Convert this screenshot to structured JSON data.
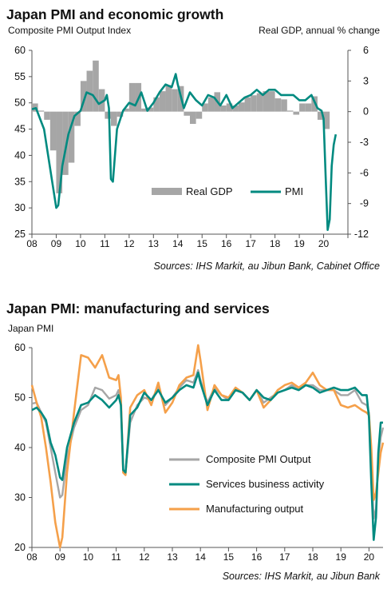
{
  "chart_data": [
    {
      "type": "bar+line",
      "title": "Japan PMI and economic growth",
      "ylabel_left": "Composite PMI Output Index",
      "ylabel_right": "Real GDP, annual % change",
      "ylim_left": [
        25,
        60
      ],
      "ylim_right": [
        -12,
        6
      ],
      "yticks_left": [
        25,
        30,
        35,
        40,
        45,
        50,
        55,
        60
      ],
      "yticks_right": [
        -12,
        -9,
        -6,
        -3,
        0,
        3,
        6
      ],
      "x_ticklabels": [
        "08",
        "09",
        "10",
        "11",
        "12",
        "13",
        "14",
        "15",
        "16",
        "17",
        "18",
        "19",
        "20"
      ],
      "legend_position": "bottom-center",
      "grid": false,
      "source": "Sources: IHS Markit, au Jibun Bank, Cabinet Office",
      "series": [
        {
          "name": "Real GDP",
          "kind": "bar",
          "color": "#a6a6a6",
          "x": [
            2008.0,
            2008.25,
            2008.5,
            2008.75,
            2009.0,
            2009.25,
            2009.5,
            2009.75,
            2010.0,
            2010.25,
            2010.5,
            2010.75,
            2011.0,
            2011.25,
            2011.5,
            2011.75,
            2012.0,
            2012.25,
            2012.5,
            2012.75,
            2013.0,
            2013.25,
            2013.5,
            2013.75,
            2014.0,
            2014.25,
            2014.5,
            2014.75,
            2015.0,
            2015.25,
            2015.5,
            2015.75,
            2016.0,
            2016.25,
            2016.5,
            2016.75,
            2017.0,
            2017.25,
            2017.5,
            2017.75,
            2018.0,
            2018.25,
            2018.5,
            2018.75,
            2019.0,
            2019.25,
            2019.5,
            2019.75,
            2020.0
          ],
          "values": [
            0.8,
            0.1,
            -0.8,
            -3.8,
            -8.0,
            -6.2,
            -5.0,
            -1.4,
            3.0,
            4.0,
            5.0,
            2.2,
            -0.7,
            -1.4,
            -0.5,
            0.3,
            2.8,
            2.8,
            0.3,
            0.4,
            1.4,
            2.0,
            2.6,
            2.2,
            2.5,
            -0.4,
            -1.2,
            -0.7,
            0.8,
            1.4,
            1.9,
            0.6,
            0.8,
            0.6,
            0.9,
            1.4,
            1.6,
            1.8,
            2.0,
            2.0,
            1.3,
            1.2,
            0.1,
            -0.3,
            0.8,
            0.8,
            1.5,
            -0.8,
            -1.7
          ]
        },
        {
          "name": "PMI",
          "kind": "line",
          "color": "#008a80",
          "x": [
            2008.0,
            2008.167,
            2008.333,
            2008.5,
            2008.667,
            2008.833,
            2009.0,
            2009.083,
            2009.25,
            2009.5,
            2009.75,
            2010.0,
            2010.25,
            2010.5,
            2010.75,
            2011.0,
            2011.083,
            2011.167,
            2011.25,
            2011.333,
            2011.5,
            2011.75,
            2012.0,
            2012.25,
            2012.5,
            2012.75,
            2013.0,
            2013.25,
            2013.5,
            2013.75,
            2013.917,
            2014.0,
            2014.25,
            2014.5,
            2014.75,
            2015.0,
            2015.25,
            2015.5,
            2015.75,
            2016.0,
            2016.25,
            2016.5,
            2016.75,
            2017.0,
            2017.25,
            2017.5,
            2017.75,
            2018.0,
            2018.25,
            2018.5,
            2018.75,
            2019.0,
            2019.25,
            2019.5,
            2019.75,
            2019.917,
            2020.0,
            2020.083,
            2020.167,
            2020.25,
            2020.333,
            2020.417,
            2020.5
          ],
          "values": [
            48.8,
            49.0,
            47.0,
            45.0,
            40.0,
            35.0,
            30.0,
            30.5,
            38.0,
            44.0,
            47.5,
            48.5,
            52.0,
            51.5,
            49.8,
            50.5,
            51.5,
            49.0,
            35.5,
            35.0,
            45.0,
            48.5,
            50.0,
            49.5,
            52.0,
            48.5,
            50.0,
            52.0,
            53.5,
            53.0,
            55.5,
            53.5,
            49.0,
            52.0,
            50.5,
            49.5,
            51.5,
            51.0,
            49.5,
            51.5,
            49.0,
            50.0,
            51.0,
            51.5,
            52.5,
            51.5,
            52.5,
            52.5,
            51.5,
            51.5,
            51.5,
            50.5,
            50.5,
            51.5,
            49.0,
            48.5,
            47.0,
            36.0,
            25.8,
            27.8,
            38.0,
            42.0,
            44.0
          ]
        }
      ]
    },
    {
      "type": "line",
      "title": "Japan PMI: manufacturing and services",
      "ylabel": "Japan PMI",
      "ylim": [
        20,
        60
      ],
      "yticks": [
        20,
        30,
        40,
        50,
        60
      ],
      "x_ticklabels": [
        "08",
        "09",
        "10",
        "11",
        "12",
        "13",
        "14",
        "15",
        "16",
        "17",
        "18",
        "19",
        "20"
      ],
      "legend_position": "bottom-center",
      "grid": false,
      "source": "Sources: IHS Markit, au Jibun Bank",
      "series": [
        {
          "name": "Composite PMI Output",
          "color": "#a6a6a6",
          "x": [
            2008.0,
            2008.167,
            2008.333,
            2008.5,
            2008.667,
            2008.833,
            2009.0,
            2009.083,
            2009.25,
            2009.5,
            2009.75,
            2010.0,
            2010.25,
            2010.5,
            2010.75,
            2011.0,
            2011.083,
            2011.167,
            2011.25,
            2011.333,
            2011.5,
            2011.75,
            2012.0,
            2012.25,
            2012.5,
            2012.75,
            2013.0,
            2013.25,
            2013.5,
            2013.75,
            2013.917,
            2014.0,
            2014.25,
            2014.5,
            2014.75,
            2015.0,
            2015.25,
            2015.5,
            2015.75,
            2016.0,
            2016.25,
            2016.5,
            2016.75,
            2017.0,
            2017.25,
            2017.5,
            2017.75,
            2018.0,
            2018.25,
            2018.5,
            2018.75,
            2019.0,
            2019.25,
            2019.5,
            2019.75,
            2019.917,
            2020.0,
            2020.083,
            2020.167,
            2020.25,
            2020.333,
            2020.417,
            2020.5
          ],
          "values": [
            48.8,
            49.0,
            47.0,
            45.0,
            40.0,
            35.0,
            30.0,
            30.5,
            38.0,
            44.0,
            47.5,
            48.5,
            52.0,
            51.5,
            49.8,
            50.5,
            51.5,
            49.0,
            35.5,
            35.0,
            45.0,
            48.5,
            50.0,
            49.5,
            52.0,
            48.5,
            50.0,
            52.0,
            53.5,
            53.0,
            55.5,
            53.5,
            49.0,
            52.0,
            50.5,
            49.5,
            51.5,
            51.0,
            49.5,
            51.5,
            49.0,
            50.0,
            51.0,
            51.5,
            52.5,
            51.5,
            52.5,
            52.5,
            51.5,
            51.5,
            51.5,
            50.5,
            50.5,
            51.5,
            49.0,
            48.5,
            47.0,
            36.0,
            25.8,
            27.8,
            38.0,
            42.0,
            44.0
          ]
        },
        {
          "name": "Services business activity",
          "color": "#008a80",
          "x": [
            2008.0,
            2008.167,
            2008.333,
            2008.5,
            2008.667,
            2008.833,
            2009.0,
            2009.083,
            2009.25,
            2009.5,
            2009.75,
            2010.0,
            2010.25,
            2010.5,
            2010.75,
            2011.0,
            2011.083,
            2011.167,
            2011.25,
            2011.333,
            2011.5,
            2011.75,
            2012.0,
            2012.25,
            2012.5,
            2012.75,
            2013.0,
            2013.25,
            2013.5,
            2013.75,
            2013.917,
            2014.0,
            2014.25,
            2014.5,
            2014.75,
            2015.0,
            2015.25,
            2015.5,
            2015.75,
            2016.0,
            2016.25,
            2016.5,
            2016.75,
            2017.0,
            2017.25,
            2017.5,
            2017.75,
            2018.0,
            2018.25,
            2018.5,
            2018.75,
            2019.0,
            2019.25,
            2019.5,
            2019.75,
            2019.917,
            2020.0,
            2020.083,
            2020.167,
            2020.25,
            2020.333,
            2020.417,
            2020.5
          ],
          "values": [
            47.5,
            48.0,
            47.0,
            45.5,
            41.0,
            38.5,
            34.0,
            33.5,
            40.0,
            45.0,
            48.5,
            49.0,
            50.5,
            49.5,
            48.0,
            49.5,
            50.5,
            48.5,
            35.5,
            35.0,
            46.5,
            48.0,
            51.0,
            49.5,
            51.5,
            49.0,
            50.0,
            51.5,
            52.5,
            52.0,
            55.0,
            53.0,
            48.5,
            51.5,
            49.5,
            49.5,
            51.5,
            51.0,
            49.5,
            51.5,
            50.0,
            49.5,
            51.0,
            51.5,
            52.0,
            51.5,
            52.5,
            52.0,
            51.0,
            51.5,
            52.0,
            51.5,
            51.5,
            52.0,
            50.5,
            50.5,
            46.0,
            33.0,
            21.5,
            26.0,
            39.0,
            45.0,
            45.0
          ]
        },
        {
          "name": "Manufacturing output",
          "color": "#f5a04a",
          "x": [
            2008.0,
            2008.167,
            2008.333,
            2008.5,
            2008.667,
            2008.833,
            2009.0,
            2009.083,
            2009.25,
            2009.5,
            2009.75,
            2010.0,
            2010.25,
            2010.5,
            2010.75,
            2011.0,
            2011.083,
            2011.167,
            2011.25,
            2011.333,
            2011.5,
            2011.75,
            2012.0,
            2012.25,
            2012.5,
            2012.75,
            2013.0,
            2013.25,
            2013.5,
            2013.75,
            2013.917,
            2014.0,
            2014.25,
            2014.5,
            2014.75,
            2015.0,
            2015.25,
            2015.5,
            2015.75,
            2016.0,
            2016.25,
            2016.5,
            2016.75,
            2017.0,
            2017.25,
            2017.5,
            2017.75,
            2018.0,
            2018.25,
            2018.5,
            2018.75,
            2019.0,
            2019.25,
            2019.5,
            2019.75,
            2019.917,
            2020.0,
            2020.083,
            2020.167,
            2020.25,
            2020.333,
            2020.417,
            2020.5
          ],
          "values": [
            52.5,
            49.0,
            46.0,
            40.0,
            33.0,
            25.0,
            20.0,
            22.0,
            35.0,
            47.0,
            58.5,
            58.0,
            56.0,
            58.5,
            54.0,
            53.5,
            54.5,
            50.0,
            35.0,
            34.5,
            48.0,
            50.5,
            51.5,
            48.5,
            53.0,
            47.0,
            49.0,
            52.5,
            54.0,
            54.5,
            60.5,
            57.5,
            47.5,
            52.5,
            50.5,
            50.0,
            52.0,
            51.0,
            49.5,
            51.5,
            48.0,
            49.5,
            51.5,
            52.5,
            53.0,
            52.0,
            53.0,
            55.0,
            52.5,
            51.5,
            51.5,
            48.5,
            48.0,
            48.5,
            47.5,
            47.0,
            46.5,
            40.0,
            29.5,
            31.0,
            35.0,
            39.0,
            41.0
          ]
        }
      ]
    }
  ]
}
